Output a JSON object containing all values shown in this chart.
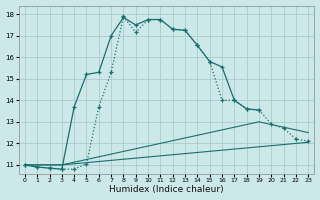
{
  "xlabel": "Humidex (Indice chaleur)",
  "bg_color": "#cce8e8",
  "grid_color": "#aacccc",
  "line_color": "#1a6e6e",
  "xlim": [
    -0.5,
    23.5
  ],
  "ylim": [
    10.6,
    18.4
  ],
  "xtick_labels": [
    "0",
    "1",
    "2",
    "3",
    "4",
    "5",
    "6",
    "7",
    "8",
    "9",
    "10",
    "11",
    "12",
    "13",
    "14",
    "15",
    "16",
    "17",
    "18",
    "19",
    "20",
    "21",
    "22",
    "23"
  ],
  "ytick_labels": [
    "11",
    "12",
    "13",
    "14",
    "15",
    "16",
    "17",
    "18"
  ],
  "curve1_x": [
    0,
    1,
    2,
    3,
    4,
    5,
    6,
    7,
    8,
    9,
    10,
    11,
    12,
    13,
    14,
    15,
    16,
    17,
    18,
    19
  ],
  "curve1_y": [
    11.0,
    10.9,
    10.85,
    10.8,
    13.7,
    15.2,
    15.3,
    17.0,
    17.85,
    17.5,
    17.75,
    17.75,
    17.3,
    17.25,
    16.55,
    15.8,
    15.55,
    14.0,
    13.6,
    13.55
  ],
  "curve2_x": [
    0,
    1,
    2,
    3,
    4,
    5,
    6,
    7,
    8,
    9,
    10,
    11,
    12,
    13,
    14,
    15,
    16,
    17,
    18,
    19,
    20,
    21,
    22,
    23
  ],
  "curve2_y": [
    11.0,
    10.9,
    10.85,
    10.8,
    10.8,
    11.05,
    13.7,
    15.3,
    17.9,
    17.15,
    17.75,
    17.75,
    17.3,
    17.25,
    16.55,
    15.8,
    14.0,
    14.0,
    13.6,
    13.55,
    12.9,
    12.7,
    12.2,
    12.1
  ],
  "curve3_x": [
    0,
    3,
    19,
    23
  ],
  "curve3_y": [
    11.0,
    11.0,
    13.0,
    12.5
  ],
  "curve4_x": [
    0,
    3,
    23
  ],
  "curve4_y": [
    11.0,
    11.0,
    12.05
  ]
}
